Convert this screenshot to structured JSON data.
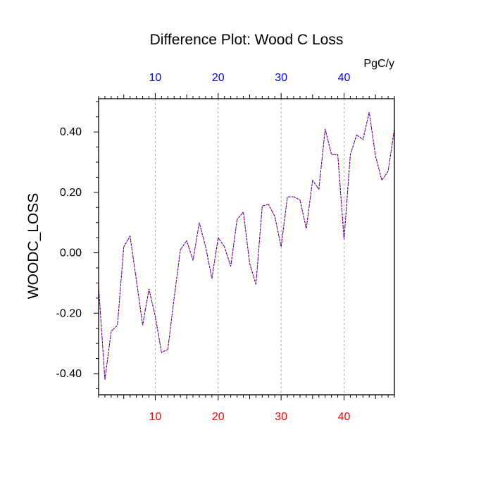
{
  "chart_data": {
    "type": "line",
    "title": "Difference Plot: Wood C Loss",
    "units": "PgC/y",
    "ylabel": "WOODC_LOSS",
    "xlabel": "",
    "xlim": [
      1,
      48
    ],
    "ylim": [
      -0.47,
      0.51
    ],
    "grid": "vertical dashed at major x ticks",
    "x_ticks": [
      10,
      20,
      30,
      40
    ],
    "x_tick_labels": [
      "10",
      "20",
      "30",
      "40"
    ],
    "y_ticks": [
      -0.4,
      -0.2,
      0.0,
      0.2,
      0.4
    ],
    "y_tick_labels": [
      "-0.40",
      "-0.20",
      "0.00",
      "0.20",
      "0.40"
    ],
    "colors": {
      "top_axis_labels": "#0000ff",
      "bottom_axis_labels": "#ff0000",
      "series_a": "#ff0000",
      "series_b": "#0000ff",
      "grid": "#aaaaaa",
      "axis": "#000000"
    },
    "series": [
      {
        "line_style": "dashed",
        "x": [
          1,
          2,
          3,
          4,
          5,
          6,
          7,
          8,
          9,
          10,
          11,
          12,
          13,
          14,
          15,
          16,
          17,
          18,
          19,
          20,
          21,
          22,
          23,
          24,
          25,
          26,
          27,
          28,
          29,
          30,
          31,
          32,
          33,
          34,
          35,
          36,
          37,
          38,
          39,
          40,
          41,
          42,
          43,
          44,
          45,
          46,
          47,
          48
        ],
        "values": [
          -0.11,
          -0.42,
          -0.26,
          -0.24,
          0.02,
          0.055,
          -0.09,
          -0.24,
          -0.12,
          -0.21,
          -0.33,
          -0.32,
          -0.15,
          0.01,
          0.04,
          -0.025,
          0.1,
          0.02,
          -0.085,
          0.05,
          0.02,
          -0.045,
          0.11,
          0.135,
          -0.035,
          -0.105,
          0.155,
          0.16,
          0.12,
          0.02,
          0.185,
          0.185,
          0.175,
          0.08,
          0.24,
          0.21,
          0.41,
          0.325,
          0.325,
          0.045,
          0.325,
          0.39,
          0.375,
          0.465,
          0.32,
          0.24,
          0.27,
          0.41
        ]
      },
      {
        "line_style": "dashed",
        "x": [
          1,
          2,
          3,
          4,
          5,
          6,
          7,
          8,
          9,
          10,
          11,
          12,
          13,
          14,
          15,
          16,
          17,
          18,
          19,
          20,
          21,
          22,
          23,
          24,
          25,
          26,
          27,
          28,
          29,
          30,
          31,
          32,
          33,
          34,
          35,
          36,
          37,
          38,
          39,
          40,
          41,
          42,
          43,
          44,
          45,
          46,
          47,
          48
        ],
        "values": [
          -0.11,
          -0.42,
          -0.26,
          -0.24,
          0.02,
          0.055,
          -0.09,
          -0.24,
          -0.12,
          -0.21,
          -0.33,
          -0.32,
          -0.15,
          0.01,
          0.04,
          -0.025,
          0.1,
          0.02,
          -0.085,
          0.05,
          0.02,
          -0.045,
          0.11,
          0.135,
          -0.035,
          -0.105,
          0.155,
          0.16,
          0.12,
          0.02,
          0.185,
          0.185,
          0.175,
          0.08,
          0.24,
          0.21,
          0.41,
          0.325,
          0.325,
          0.045,
          0.325,
          0.39,
          0.375,
          0.465,
          0.32,
          0.24,
          0.27,
          0.41
        ]
      }
    ]
  }
}
